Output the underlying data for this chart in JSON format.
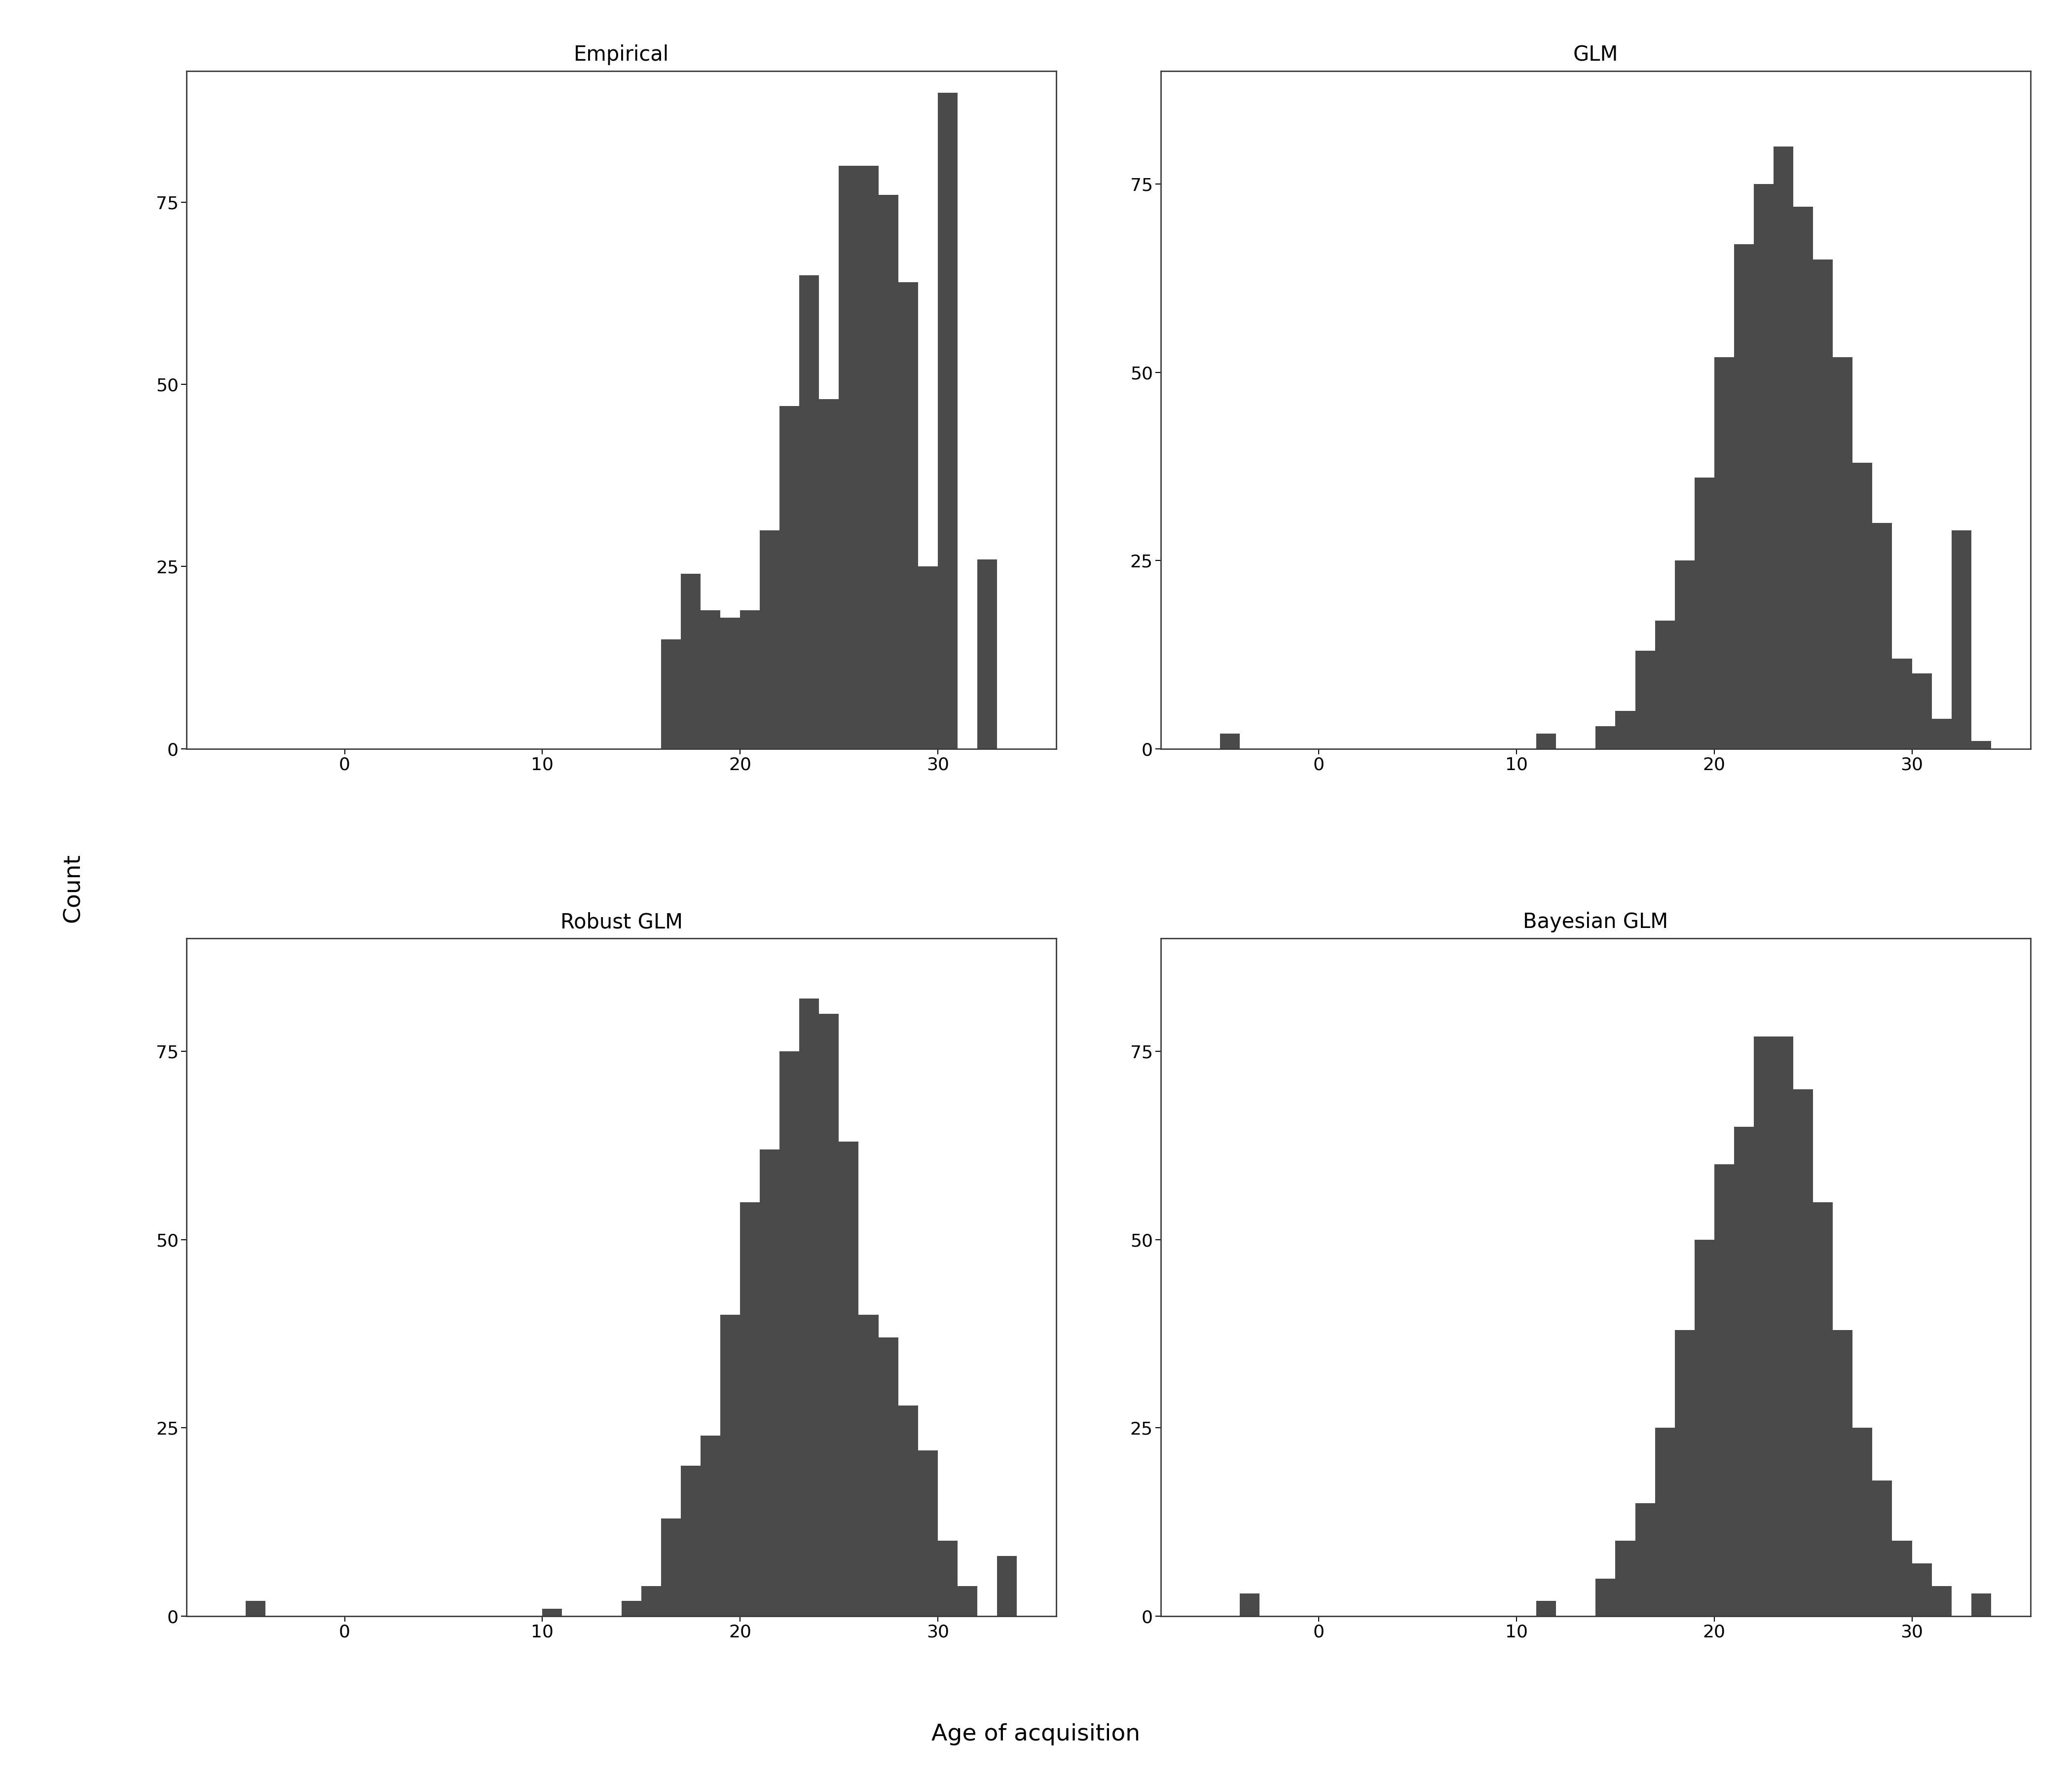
{
  "panels": [
    {
      "title": "Empirical",
      "counts_by_bin": {
        "16": 15,
        "17": 24,
        "18": 19,
        "19": 18,
        "20": 19,
        "21": 30,
        "22": 47,
        "23": 65,
        "24": 48,
        "25": 80,
        "26": 80,
        "27": 76,
        "28": 64,
        "29": 25,
        "30": 90,
        "31": 0,
        "32": 26
      },
      "outliers": {},
      "ylim": [
        0,
        93
      ],
      "yticks": [
        0,
        25,
        50,
        75
      ]
    },
    {
      "title": "GLM",
      "counts_by_bin": {
        "14": 3,
        "15": 5,
        "16": 13,
        "17": 17,
        "18": 25,
        "19": 36,
        "20": 52,
        "21": 67,
        "22": 75,
        "23": 80,
        "24": 72,
        "25": 65,
        "26": 52,
        "27": 38,
        "28": 30,
        "29": 12,
        "30": 10,
        "31": 4,
        "32": 29,
        "33": 1
      },
      "outliers": {
        "-5": 2,
        "11": 2
      },
      "ylim": [
        0,
        90
      ],
      "yticks": [
        0,
        25,
        50,
        75
      ]
    },
    {
      "title": "Robust GLM",
      "counts_by_bin": {
        "14": 2,
        "15": 4,
        "16": 13,
        "17": 20,
        "18": 24,
        "19": 40,
        "20": 55,
        "21": 62,
        "22": 75,
        "23": 82,
        "24": 80,
        "25": 63,
        "26": 40,
        "27": 37,
        "28": 28,
        "29": 22,
        "30": 10,
        "31": 4,
        "33": 8
      },
      "outliers": {
        "-5": 2,
        "10": 1
      },
      "ylim": [
        0,
        90
      ],
      "yticks": [
        0,
        25,
        50,
        75
      ]
    },
    {
      "title": "Bayesian GLM",
      "counts_by_bin": {
        "14": 5,
        "15": 10,
        "16": 15,
        "17": 25,
        "18": 38,
        "19": 50,
        "20": 60,
        "21": 65,
        "22": 77,
        "23": 77,
        "24": 70,
        "25": 55,
        "26": 38,
        "27": 25,
        "28": 18,
        "29": 10,
        "30": 7,
        "31": 4,
        "33": 3
      },
      "outliers": {
        "-4": 3,
        "11": 2
      },
      "ylim": [
        0,
        90
      ],
      "yticks": [
        0,
        25,
        50,
        75
      ]
    }
  ],
  "ylabel": "Count",
  "xlabel": "Age of acquisition",
  "xlim": [
    -8,
    36
  ],
  "xticks": [
    0,
    10,
    20,
    30
  ],
  "bar_color": "#4a4a4a",
  "background_color": "#ffffff",
  "title_fontsize": 30,
  "label_fontsize": 30,
  "tick_fontsize": 26,
  "spine_linewidth": 2.0
}
